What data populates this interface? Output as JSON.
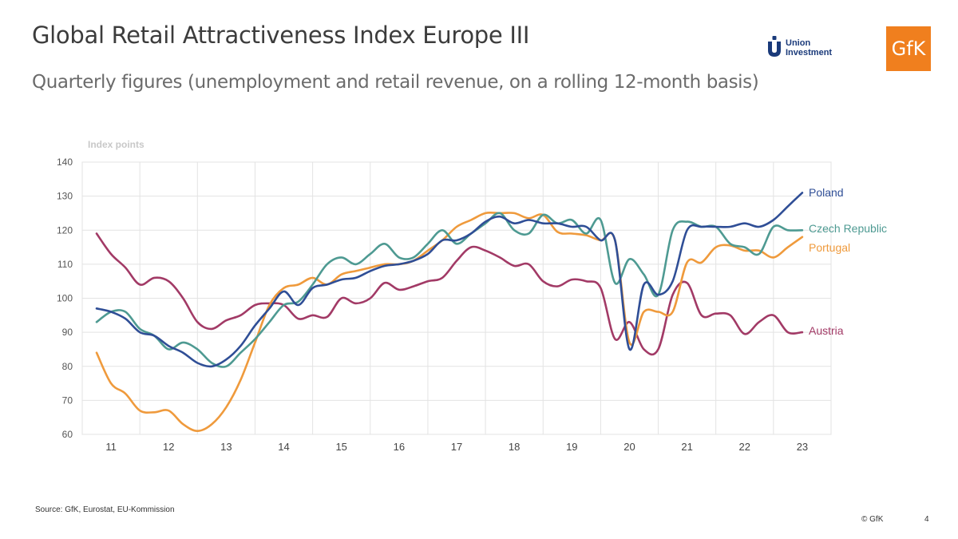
{
  "header": {
    "title": "Global Retail Attractiveness Index Europe III",
    "subtitle": "Quarterly figures (unemployment and retail revenue, on a rolling 12-month basis)"
  },
  "logos": {
    "union_investment": "Union\nInvestment",
    "gfk": "GfK"
  },
  "footer": {
    "source": "Source: GfK, Eurostat, EU-Kommission",
    "copyright": "© GfK",
    "page": "4"
  },
  "chart_data": {
    "type": "line",
    "title": "",
    "ylabel": "Index points",
    "ylim": [
      60,
      140
    ],
    "yticks": [
      60,
      70,
      80,
      90,
      100,
      110,
      120,
      130,
      140
    ],
    "x_tick_labels": [
      "11",
      "12",
      "13",
      "14",
      "15",
      "16",
      "17",
      "18",
      "19",
      "20",
      "21",
      "22",
      "23"
    ],
    "grid": true,
    "legend": "labels at line ends (right)",
    "x": [
      2010.75,
      2011.0,
      2011.25,
      2011.5,
      2011.75,
      2012.0,
      2012.25,
      2012.5,
      2012.75,
      2013.0,
      2013.25,
      2013.5,
      2013.75,
      2014.0,
      2014.25,
      2014.5,
      2014.75,
      2015.0,
      2015.25,
      2015.5,
      2015.75,
      2016.0,
      2016.25,
      2016.5,
      2016.75,
      2017.0,
      2017.25,
      2017.5,
      2017.75,
      2018.0,
      2018.25,
      2018.5,
      2018.75,
      2019.0,
      2019.25,
      2019.5,
      2019.75,
      2020.0,
      2020.25,
      2020.5,
      2020.75,
      2021.0,
      2021.25,
      2021.5,
      2021.75,
      2022.0,
      2022.25,
      2022.5,
      2022.75,
      2023.0
    ],
    "series": [
      {
        "name": "Poland",
        "color": "#2f4e96",
        "values": [
          97,
          96,
          94,
          90,
          89,
          86,
          84,
          81,
          80,
          82,
          86,
          92,
          97,
          102,
          98,
          103,
          104,
          105.5,
          106,
          108,
          109.5,
          110,
          111,
          113,
          117,
          117,
          119,
          122.5,
          124,
          122,
          123,
          122,
          122,
          121,
          121,
          117,
          117,
          85,
          104,
          101,
          105,
          120,
          121,
          121,
          121,
          122,
          121,
          123,
          127,
          131
        ]
      },
      {
        "name": "Czech Republic",
        "color": "#4e9a92",
        "values": [
          93,
          96,
          96,
          91,
          89,
          85,
          87,
          85,
          81,
          80,
          84,
          88,
          93,
          98,
          99,
          104,
          110,
          112,
          110,
          113,
          116,
          112,
          112,
          116,
          120,
          116,
          119,
          122,
          125,
          120,
          119,
          124.5,
          122,
          123,
          119,
          123,
          104.5,
          111.5,
          107,
          101,
          120,
          122.5,
          121,
          121,
          116,
          115,
          113,
          121,
          120,
          120
        ]
      },
      {
        "name": "Portugal",
        "color": "#ef9a3c",
        "values": [
          84,
          75,
          72,
          67,
          66.5,
          67,
          63,
          61,
          63,
          68,
          76,
          87,
          98,
          103,
          104,
          106,
          104,
          107,
          108,
          109,
          110,
          110,
          111,
          114,
          117,
          121,
          123,
          125,
          125,
          125,
          123.5,
          124.5,
          119.5,
          119,
          118.5,
          117,
          117,
          87,
          96,
          96,
          96,
          110.5,
          110.5,
          115,
          115.5,
          114,
          114,
          112,
          115,
          118
        ]
      },
      {
        "name": "Austria",
        "color": "#a23a66",
        "values": [
          119,
          113,
          109,
          104,
          106,
          105,
          100,
          93,
          91,
          93.5,
          95,
          98,
          98.5,
          98,
          94,
          95,
          94.5,
          100,
          98.5,
          100,
          104.5,
          102.5,
          103.5,
          105,
          106,
          111,
          115,
          114,
          112,
          109.5,
          110,
          105,
          103.5,
          105.5,
          105,
          103,
          88,
          93,
          85,
          85,
          101,
          104.5,
          95,
          95.5,
          95,
          89.5,
          93,
          95,
          90,
          90
        ]
      }
    ]
  }
}
